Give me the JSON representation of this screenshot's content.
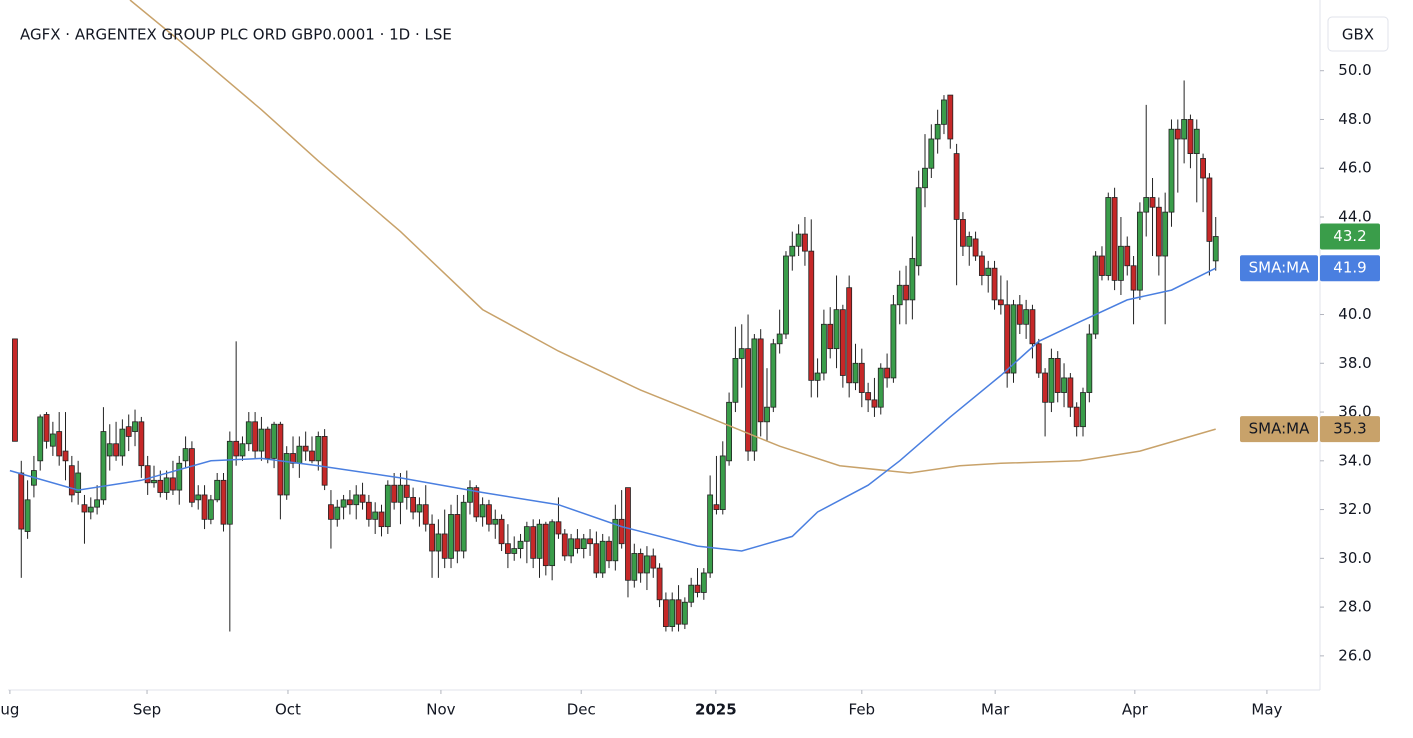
{
  "chart_data": {
    "type": "candlestick",
    "title": "AGFX · ARGENTEX GROUP PLC ORD GBP0.0001 · 1D · LSE",
    "currency": "GBX",
    "up_color": "#3a9d4a",
    "down_color": "#c62828",
    "grid": false,
    "ylim": [
      24.6,
      52.9
    ],
    "yticks": [
      {
        "value": 26,
        "label": "26.0"
      },
      {
        "value": 28,
        "label": "28.0"
      },
      {
        "value": 30,
        "label": "30.0"
      },
      {
        "value": 32,
        "label": "32.0"
      },
      {
        "value": 34,
        "label": "34.0"
      },
      {
        "value": 36,
        "label": "36.0"
      },
      {
        "value": 38,
        "label": "38.0"
      },
      {
        "value": 40,
        "label": "40.0"
      },
      {
        "value": 42,
        "label": "42.0"
      },
      {
        "value": 44,
        "label": "44.0"
      },
      {
        "value": 46,
        "label": "46.0"
      },
      {
        "value": 48,
        "label": "48.0"
      },
      {
        "value": 50,
        "label": "50.0"
      }
    ],
    "xlim": [
      -1.1,
      206.5
    ],
    "xticks": [
      {
        "value": -0.8,
        "label": "ug"
      },
      {
        "value": 20.9,
        "label": "Sep"
      },
      {
        "value": 43.2,
        "label": "Oct"
      },
      {
        "value": 67.4,
        "label": "Nov"
      },
      {
        "value": 89.6,
        "label": "Dec"
      },
      {
        "value": 110.9,
        "label": "2025"
      },
      {
        "value": 134.0,
        "label": "Feb"
      },
      {
        "value": 155.1,
        "label": "Mar"
      },
      {
        "value": 177.2,
        "label": "Apr"
      },
      {
        "value": 198.1,
        "label": "May"
      }
    ],
    "candles": [
      [
        39.0,
        39.0,
        34.8,
        34.8
      ],
      [
        33.5,
        34.0,
        29.2,
        31.2
      ],
      [
        31.1,
        33.2,
        30.8,
        32.4
      ],
      [
        33.0,
        34.2,
        32.5,
        33.6
      ],
      [
        34.0,
        35.9,
        33.6,
        35.8
      ],
      [
        35.9,
        36.0,
        34.5,
        34.8
      ],
      [
        34.6,
        35.6,
        34.2,
        35.1
      ],
      [
        35.2,
        36.0,
        33.8,
        34.2
      ],
      [
        34.4,
        36.0,
        33.2,
        34.0
      ],
      [
        33.8,
        34.2,
        32.3,
        32.6
      ],
      [
        32.7,
        34.0,
        32.2,
        33.5
      ],
      [
        32.2,
        32.6,
        30.6,
        31.9
      ],
      [
        31.9,
        32.5,
        31.6,
        32.1
      ],
      [
        32.1,
        33.0,
        31.8,
        32.4
      ],
      [
        32.4,
        36.2,
        32.2,
        35.2
      ],
      [
        34.2,
        35.5,
        33.6,
        34.7
      ],
      [
        34.7,
        35.6,
        34.0,
        34.2
      ],
      [
        34.2,
        35.7,
        33.8,
        35.3
      ],
      [
        35.4,
        35.9,
        34.4,
        35.0
      ],
      [
        35.2,
        36.1,
        34.6,
        35.6
      ],
      [
        35.6,
        35.8,
        33.3,
        33.8
      ],
      [
        33.8,
        34.2,
        32.6,
        33.1
      ],
      [
        33.1,
        33.8,
        32.9,
        33.2
      ],
      [
        33.2,
        33.6,
        32.5,
        32.7
      ],
      [
        32.7,
        33.6,
        32.4,
        33.3
      ],
      [
        33.3,
        34.0,
        32.6,
        32.8
      ],
      [
        32.8,
        34.2,
        32.2,
        33.9
      ],
      [
        34.0,
        35.0,
        33.7,
        34.5
      ],
      [
        34.5,
        34.8,
        32.1,
        32.3
      ],
      [
        32.4,
        33.0,
        32.0,
        32.6
      ],
      [
        32.6,
        33.0,
        31.2,
        31.6
      ],
      [
        31.6,
        32.6,
        31.4,
        32.4
      ],
      [
        32.4,
        33.5,
        32.3,
        33.2
      ],
      [
        33.2,
        33.5,
        31.1,
        31.4
      ],
      [
        31.4,
        35.2,
        27.0,
        34.8
      ],
      [
        34.8,
        38.9,
        33.8,
        34.2
      ],
      [
        34.2,
        35.0,
        34.0,
        34.7
      ],
      [
        34.7,
        36.0,
        34.4,
        35.6
      ],
      [
        35.6,
        36.0,
        34.1,
        34.4
      ],
      [
        34.4,
        35.8,
        34.0,
        35.3
      ],
      [
        35.3,
        35.4,
        33.9,
        34.1
      ],
      [
        34.1,
        35.6,
        33.7,
        35.5
      ],
      [
        35.5,
        35.6,
        31.6,
        32.6
      ],
      [
        32.6,
        34.6,
        32.4,
        34.3
      ],
      [
        34.3,
        35.0,
        33.7,
        33.9
      ],
      [
        33.9,
        35.0,
        33.3,
        34.6
      ],
      [
        34.6,
        35.2,
        34.0,
        34.4
      ],
      [
        34.4,
        35.0,
        33.9,
        34.0
      ],
      [
        34.0,
        35.2,
        33.6,
        35.0
      ],
      [
        35.0,
        35.3,
        32.8,
        33.0
      ],
      [
        32.2,
        32.8,
        30.4,
        31.6
      ],
      [
        31.6,
        32.4,
        31.3,
        32.1
      ],
      [
        32.1,
        32.6,
        31.6,
        32.4
      ],
      [
        32.4,
        32.8,
        31.8,
        32.2
      ],
      [
        32.2,
        33.0,
        31.6,
        32.6
      ],
      [
        32.6,
        33.1,
        32.0,
        32.3
      ],
      [
        32.3,
        32.6,
        31.3,
        31.6
      ],
      [
        31.6,
        32.3,
        31.0,
        31.9
      ],
      [
        31.9,
        32.2,
        30.9,
        31.3
      ],
      [
        31.3,
        33.2,
        31.0,
        33.0
      ],
      [
        33.0,
        33.5,
        32.0,
        32.3
      ],
      [
        32.3,
        33.5,
        31.4,
        33.0
      ],
      [
        33.0,
        33.6,
        32.0,
        32.5
      ],
      [
        32.5,
        32.9,
        31.6,
        31.9
      ],
      [
        31.9,
        32.5,
        31.3,
        32.2
      ],
      [
        32.2,
        33.0,
        31.1,
        31.4
      ],
      [
        31.4,
        31.8,
        29.2,
        30.3
      ],
      [
        30.3,
        31.6,
        29.2,
        31.0
      ],
      [
        31.0,
        32.0,
        29.6,
        30.0
      ],
      [
        30.0,
        32.2,
        29.6,
        31.8
      ],
      [
        31.8,
        32.6,
        29.8,
        30.3
      ],
      [
        30.3,
        32.6,
        30.0,
        32.3
      ],
      [
        32.3,
        33.2,
        31.8,
        32.9
      ],
      [
        32.9,
        33.0,
        31.5,
        31.7
      ],
      [
        31.7,
        32.5,
        31.3,
        32.2
      ],
      [
        32.2,
        32.4,
        31.1,
        31.4
      ],
      [
        31.4,
        32.0,
        30.8,
        31.6
      ],
      [
        31.6,
        31.8,
        30.3,
        30.6
      ],
      [
        30.6,
        31.4,
        29.6,
        30.2
      ],
      [
        30.2,
        30.9,
        29.9,
        30.4
      ],
      [
        30.4,
        31.0,
        30.0,
        30.7
      ],
      [
        30.7,
        31.5,
        29.8,
        31.3
      ],
      [
        31.3,
        31.6,
        29.6,
        30.0
      ],
      [
        30.0,
        31.6,
        29.2,
        31.4
      ],
      [
        31.4,
        31.5,
        29.3,
        29.7
      ],
      [
        29.7,
        31.6,
        29.1,
        31.5
      ],
      [
        31.5,
        32.5,
        30.8,
        31.0
      ],
      [
        31.0,
        31.2,
        29.9,
        30.1
      ],
      [
        30.1,
        31.0,
        29.8,
        30.8
      ],
      [
        30.8,
        31.2,
        30.2,
        30.4
      ],
      [
        30.4,
        31.0,
        30.0,
        30.8
      ],
      [
        30.8,
        31.2,
        30.1,
        30.6
      ],
      [
        30.6,
        31.1,
        29.2,
        29.4
      ],
      [
        29.4,
        31.0,
        29.2,
        30.7
      ],
      [
        30.7,
        30.9,
        29.6,
        29.9
      ],
      [
        29.9,
        32.2,
        29.5,
        31.6
      ],
      [
        31.6,
        32.8,
        30.4,
        30.6
      ],
      [
        32.9,
        32.9,
        28.4,
        29.1
      ],
      [
        29.1,
        30.6,
        28.8,
        30.2
      ],
      [
        30.2,
        30.4,
        29.0,
        29.4
      ],
      [
        29.4,
        30.5,
        28.7,
        30.1
      ],
      [
        30.1,
        30.4,
        29.2,
        29.6
      ],
      [
        29.6,
        29.8,
        28.0,
        28.3
      ],
      [
        28.3,
        28.6,
        27.0,
        27.2
      ],
      [
        27.2,
        28.6,
        27.0,
        28.3
      ],
      [
        28.3,
        28.9,
        27.0,
        27.3
      ],
      [
        27.3,
        28.4,
        27.1,
        28.2
      ],
      [
        28.2,
        29.2,
        28.0,
        28.9
      ],
      [
        28.9,
        29.6,
        28.4,
        28.6
      ],
      [
        28.6,
        29.6,
        28.3,
        29.4
      ],
      [
        29.4,
        33.4,
        29.2,
        32.6
      ],
      [
        32.2,
        34.2,
        31.8,
        32.0
      ],
      [
        32.0,
        34.8,
        31.8,
        34.2
      ],
      [
        34.0,
        36.8,
        33.8,
        36.4
      ],
      [
        36.4,
        39.5,
        36.0,
        38.2
      ],
      [
        38.2,
        39.6,
        37.0,
        38.6
      ],
      [
        38.6,
        40.0,
        34.0,
        34.4
      ],
      [
        34.4,
        39.2,
        34.0,
        39.0
      ],
      [
        39.0,
        39.4,
        35.0,
        35.6
      ],
      [
        35.6,
        37.8,
        34.8,
        36.2
      ],
      [
        36.2,
        39.0,
        36.0,
        38.8
      ],
      [
        38.8,
        40.2,
        38.4,
        39.2
      ],
      [
        39.2,
        42.6,
        39.0,
        42.4
      ],
      [
        42.4,
        43.4,
        41.8,
        42.8
      ],
      [
        42.8,
        43.7,
        42.4,
        43.3
      ],
      [
        43.3,
        44.0,
        42.0,
        42.6
      ],
      [
        42.6,
        43.9,
        36.6,
        37.3
      ],
      [
        37.3,
        38.2,
        36.6,
        37.6
      ],
      [
        37.6,
        40.2,
        37.3,
        39.6
      ],
      [
        39.6,
        40.3,
        38.2,
        38.6
      ],
      [
        38.6,
        41.6,
        37.8,
        40.2
      ],
      [
        40.2,
        40.4,
        37.0,
        37.5
      ],
      [
        41.1,
        41.6,
        36.6,
        37.2
      ],
      [
        37.2,
        38.8,
        36.9,
        38.0
      ],
      [
        38.0,
        38.6,
        36.2,
        36.8
      ],
      [
        36.8,
        37.2,
        36.0,
        36.5
      ],
      [
        36.5,
        37.4,
        35.8,
        36.2
      ],
      [
        36.2,
        38.0,
        35.9,
        37.8
      ],
      [
        37.8,
        38.4,
        37.0,
        37.4
      ],
      [
        37.4,
        40.8,
        37.2,
        40.4
      ],
      [
        40.4,
        41.8,
        39.6,
        41.2
      ],
      [
        41.2,
        42.0,
        39.6,
        40.6
      ],
      [
        40.6,
        43.2,
        39.8,
        42.3
      ],
      [
        42.0,
        45.9,
        41.6,
        45.2
      ],
      [
        45.2,
        47.4,
        44.4,
        46.0
      ],
      [
        46.0,
        47.8,
        45.6,
        47.2
      ],
      [
        47.2,
        48.4,
        46.6,
        47.8
      ],
      [
        47.8,
        49.0,
        47.4,
        48.8
      ],
      [
        49.0,
        49.0,
        46.8,
        47.2
      ],
      [
        46.6,
        47.0,
        41.2,
        43.9
      ],
      [
        43.9,
        44.2,
        42.4,
        42.8
      ],
      [
        42.8,
        43.4,
        42.0,
        43.2
      ],
      [
        43.1,
        43.4,
        42.2,
        42.4
      ],
      [
        42.4,
        42.6,
        41.2,
        41.6
      ],
      [
        41.6,
        42.2,
        40.9,
        41.9
      ],
      [
        41.9,
        42.2,
        40.2,
        40.6
      ],
      [
        40.6,
        41.6,
        40.0,
        40.4
      ],
      [
        40.4,
        41.4,
        37.0,
        37.6
      ],
      [
        37.6,
        40.6,
        37.2,
        40.4
      ],
      [
        40.4,
        40.8,
        39.2,
        39.6
      ],
      [
        39.6,
        40.6,
        39.0,
        40.2
      ],
      [
        40.2,
        40.4,
        38.2,
        38.8
      ],
      [
        38.8,
        39.0,
        37.4,
        37.6
      ],
      [
        37.6,
        37.8,
        35.0,
        36.4
      ],
      [
        36.4,
        38.6,
        36.0,
        38.2
      ],
      [
        38.2,
        38.5,
        36.4,
        36.8
      ],
      [
        36.8,
        38.0,
        36.2,
        37.4
      ],
      [
        37.4,
        37.6,
        35.8,
        36.2
      ],
      [
        36.2,
        36.4,
        35.0,
        35.4
      ],
      [
        35.4,
        37.0,
        35.0,
        36.8
      ],
      [
        36.8,
        39.6,
        36.4,
        39.2
      ],
      [
        39.2,
        42.6,
        39.0,
        42.4
      ],
      [
        42.4,
        42.8,
        41.4,
        41.6
      ],
      [
        41.6,
        45.0,
        41.4,
        44.8
      ],
      [
        44.8,
        45.2,
        41.0,
        41.4
      ],
      [
        41.4,
        44.0,
        40.8,
        42.8
      ],
      [
        42.8,
        43.2,
        41.6,
        42.0
      ],
      [
        42.0,
        42.4,
        39.6,
        41.0
      ],
      [
        41.0,
        44.6,
        40.6,
        44.2
      ],
      [
        44.2,
        48.6,
        43.2,
        44.8
      ],
      [
        44.8,
        45.6,
        42.4,
        44.4
      ],
      [
        44.4,
        44.8,
        41.6,
        42.4
      ],
      [
        42.4,
        45.0,
        39.6,
        44.2
      ],
      [
        44.2,
        48.0,
        43.6,
        47.6
      ],
      [
        47.6,
        48.0,
        45.0,
        47.2
      ],
      [
        47.2,
        49.6,
        46.2,
        48.0
      ],
      [
        48.0,
        48.2,
        46.0,
        46.6
      ],
      [
        46.6,
        48.0,
        44.6,
        47.6
      ],
      [
        46.4,
        46.6,
        44.2,
        45.6
      ],
      [
        45.6,
        45.8,
        41.6,
        43.0
      ],
      [
        42.2,
        44.0,
        41.8,
        43.2
      ]
    ],
    "series": [
      {
        "name": "SMA:MA",
        "color": "#c8a26a",
        "x": [
          18.2,
          29,
          39,
          48,
          61,
          74,
          86,
          99,
          111.5,
          121,
          130.5,
          141.6,
          149.5,
          156,
          168.5,
          178,
          190
        ],
        "values": [
          52.9,
          50.6,
          48.4,
          46.3,
          43.4,
          40.2,
          38.5,
          36.9,
          35.6,
          34.6,
          33.8,
          33.5,
          33.8,
          33.9,
          34.0,
          34.4,
          35.3
        ]
      },
      {
        "name": "SMA:MA",
        "color": "#4a7fe0",
        "x": [
          -0.8,
          10,
          20,
          31,
          39,
          48,
          61,
          74,
          86,
          96,
          108,
          115,
          123,
          127,
          135,
          140,
          148,
          156,
          162,
          168.5,
          176,
          183,
          190
        ],
        "values": [
          33.6,
          32.8,
          33.2,
          34.0,
          34.1,
          33.8,
          33.3,
          32.7,
          32.2,
          31.3,
          30.5,
          30.3,
          30.9,
          31.9,
          33.0,
          34.0,
          35.8,
          37.5,
          38.9,
          39.7,
          40.6,
          41.0,
          41.9
        ]
      }
    ]
  }
}
